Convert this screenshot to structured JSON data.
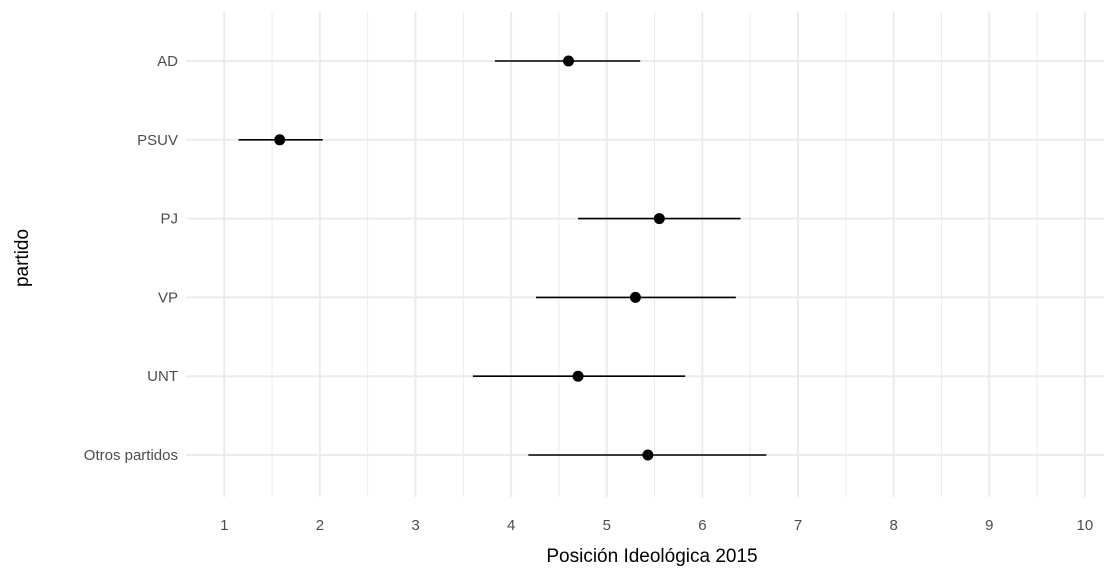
{
  "chart_data": {
    "type": "scatter",
    "subtype": "point-range",
    "title": "",
    "xlabel": "Posición Ideológica 2015",
    "ylabel": "partido",
    "xlim": [
      0.6,
      10.2
    ],
    "x_ticks": [
      "1",
      "2",
      "3",
      "4",
      "5",
      "6",
      "7",
      "8",
      "9",
      "10"
    ],
    "grid": true,
    "legend": "none",
    "colors": {
      "point": "#000000",
      "line": "#000000",
      "grid": "#ebebeb",
      "tick_text": "#4d4d4d"
    },
    "points": [
      {
        "category": "AD",
        "x": 4.6,
        "lower": 3.83,
        "upper": 5.35
      },
      {
        "category": "PSUV",
        "x": 1.58,
        "lower": 1.15,
        "upper": 2.03
      },
      {
        "category": "PJ",
        "x": 5.55,
        "lower": 4.7,
        "upper": 6.4
      },
      {
        "category": "VP",
        "x": 5.3,
        "lower": 4.26,
        "upper": 6.35
      },
      {
        "category": "UNT",
        "x": 4.7,
        "lower": 3.6,
        "upper": 5.82
      },
      {
        "category": "Otros partidos",
        "x": 5.43,
        "lower": 4.18,
        "upper": 6.67
      }
    ]
  }
}
